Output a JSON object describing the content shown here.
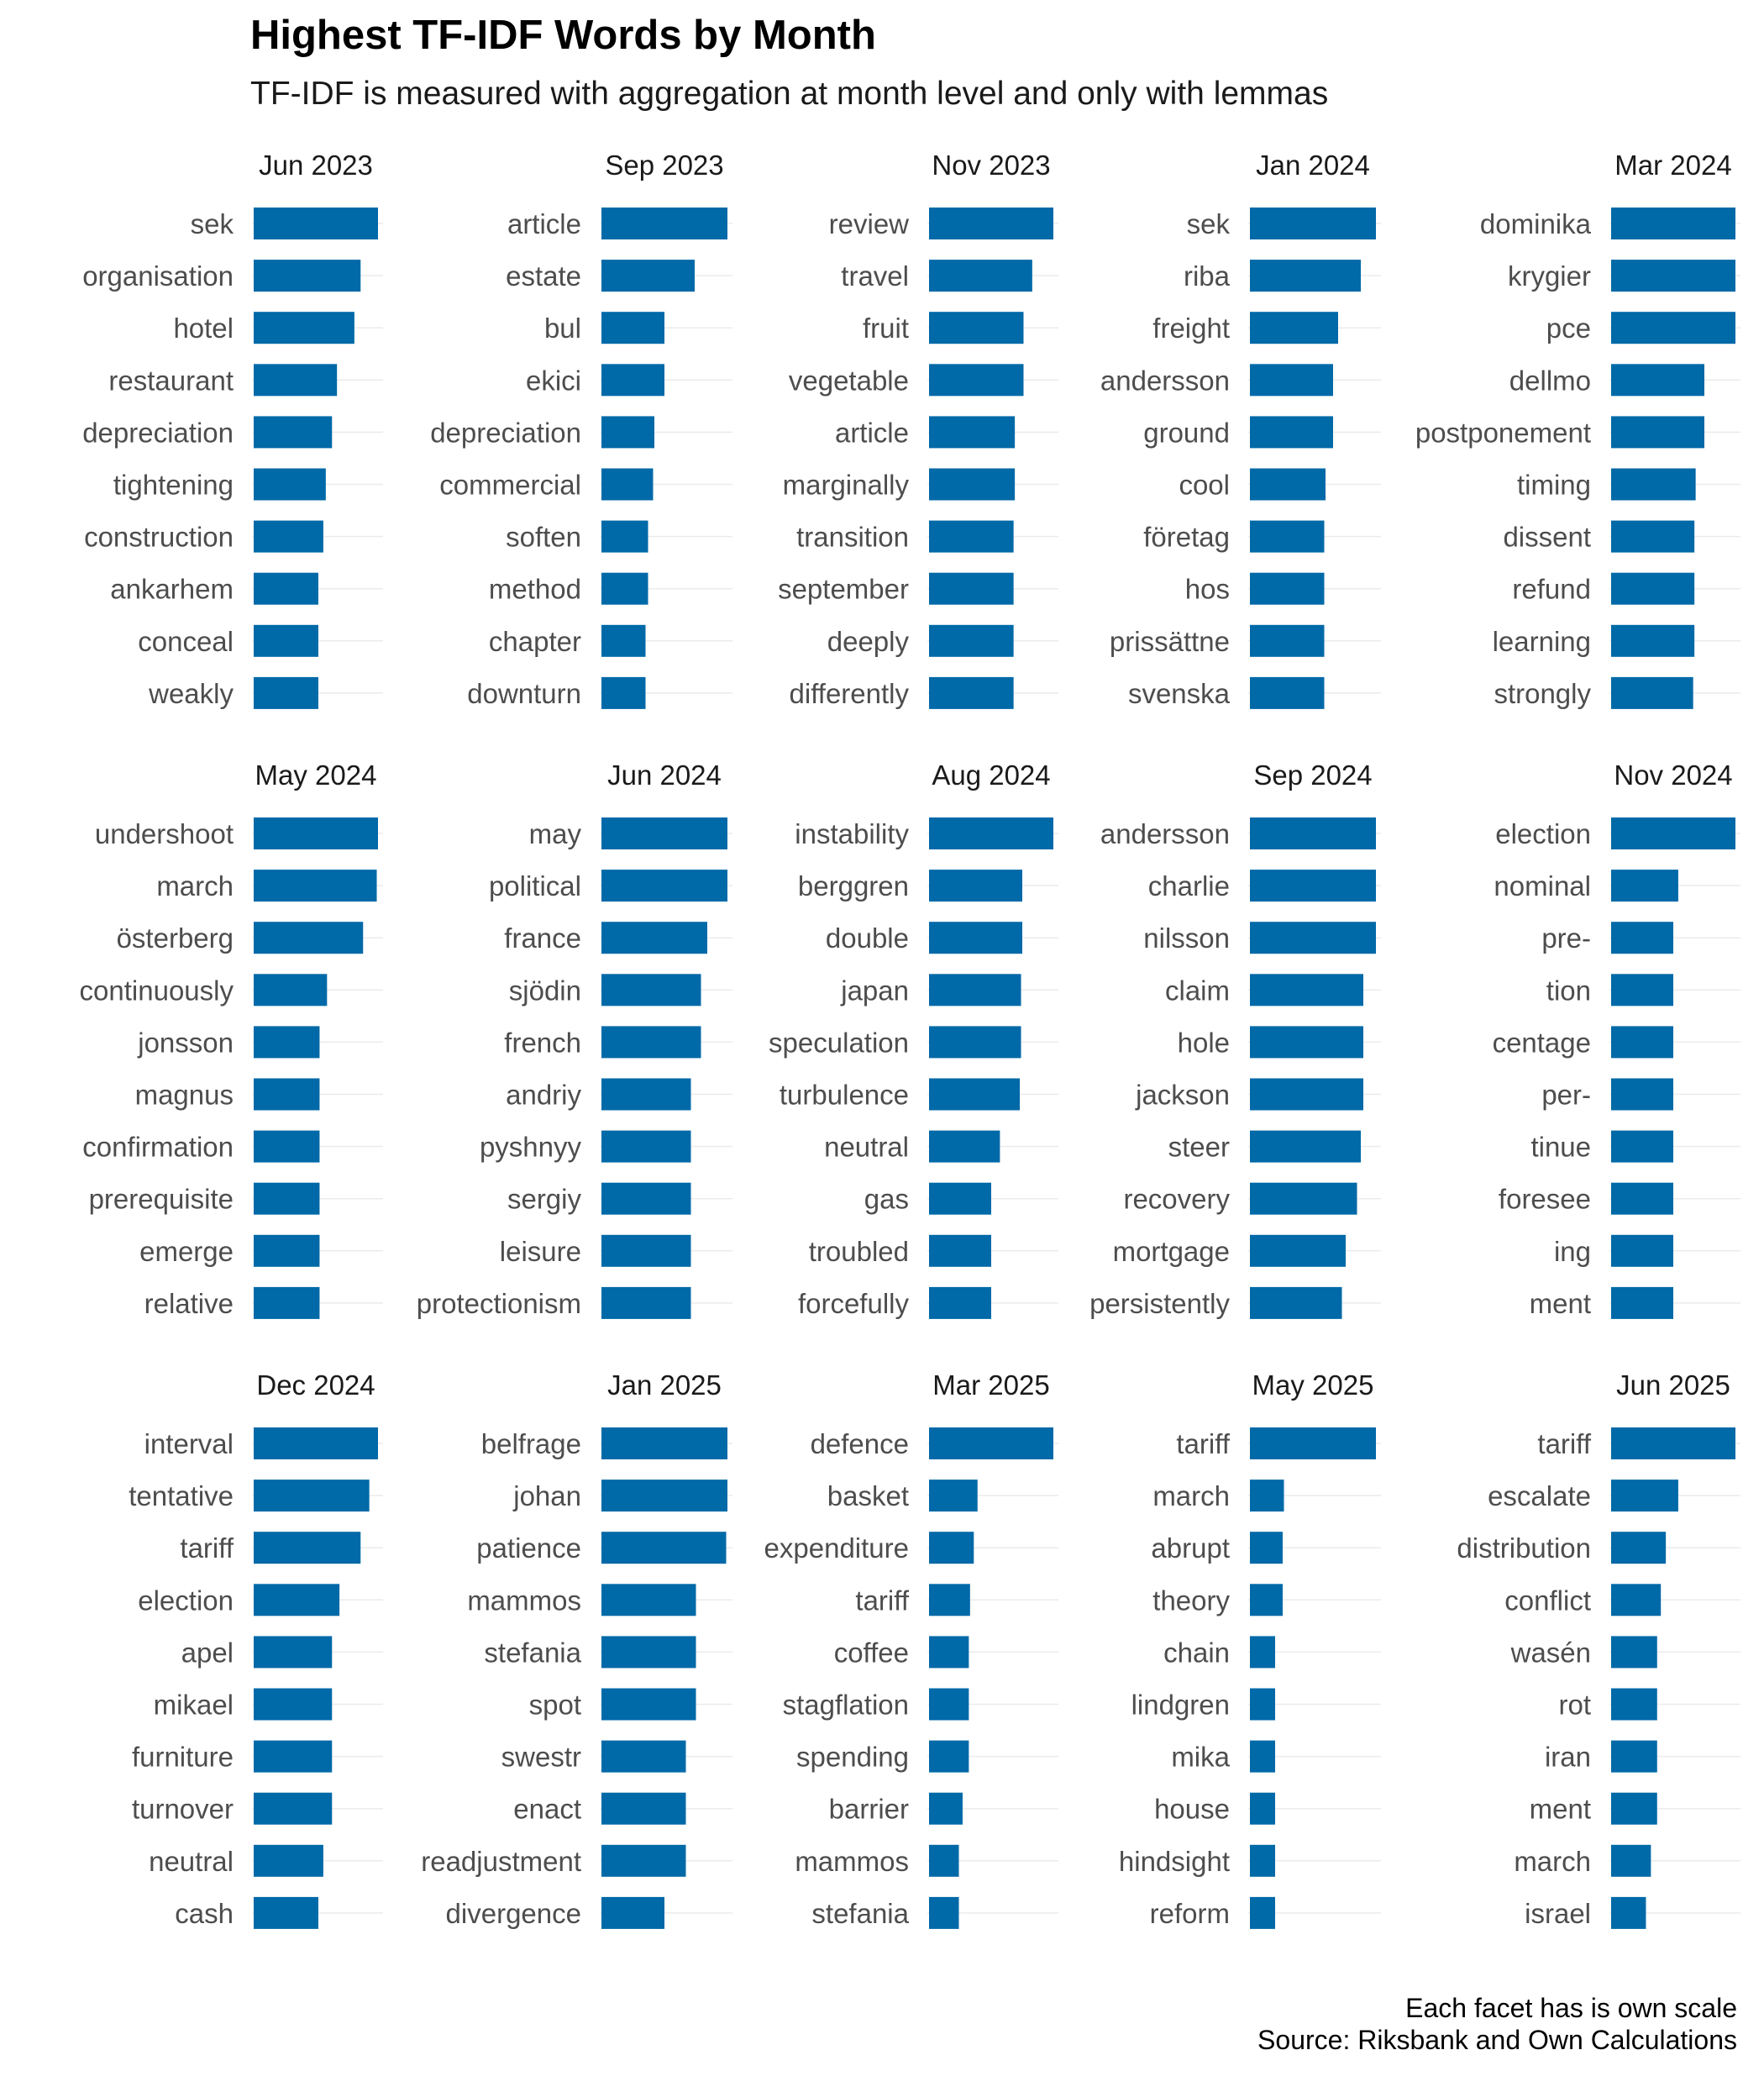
{
  "title": "Highest TF-IDF Words by Month",
  "subtitle": "TF-IDF is measured with aggregation at month level and only with lemmas",
  "caption": [
    "Each facet has is own scale",
    "Source: Riksbank and Own Calculations"
  ],
  "colors": {
    "bar": "#0069a8",
    "grid": "#ebebeb",
    "label": "#4d4d4d",
    "strip": "#1a1a1a"
  },
  "chart_data": {
    "type": "bar",
    "orientation": "horizontal",
    "faceted": true,
    "scales": "free_x",
    "value_note": "values are relative to each facet's maximum (1 = largest bar)",
    "facets": [
      {
        "month": "Jun 2023",
        "words": [
          "sek",
          "organisation",
          "hotel",
          "restaurant",
          "depreciation",
          "tightening",
          "construction",
          "ankarhem",
          "conceal",
          "weakly"
        ],
        "values": [
          1.0,
          0.86,
          0.81,
          0.67,
          0.63,
          0.58,
          0.56,
          0.52,
          0.52,
          0.52
        ]
      },
      {
        "month": "Sep 2023",
        "words": [
          "article",
          "estate",
          "bul",
          "ekici",
          "depreciation",
          "commercial",
          "soften",
          "method",
          "chapter",
          "downturn"
        ],
        "values": [
          1.0,
          0.74,
          0.5,
          0.5,
          0.42,
          0.41,
          0.37,
          0.37,
          0.35,
          0.35
        ]
      },
      {
        "month": "Nov 2023",
        "words": [
          "review",
          "travel",
          "fruit",
          "vegetable",
          "article",
          "marginally",
          "transition",
          "september",
          "deeply",
          "differently"
        ],
        "values": [
          1.0,
          0.83,
          0.76,
          0.76,
          0.69,
          0.69,
          0.68,
          0.68,
          0.68,
          0.68
        ]
      },
      {
        "month": "Jan 2024",
        "words": [
          "sek",
          "riba",
          "freight",
          "andersson",
          "ground",
          "cool",
          "företag",
          "hos",
          "prissättne",
          "svenska"
        ],
        "values": [
          1.0,
          0.88,
          0.7,
          0.66,
          0.66,
          0.6,
          0.59,
          0.59,
          0.59,
          0.59
        ]
      },
      {
        "month": "Mar 2024",
        "words": [
          "dominika",
          "krygier",
          "pce",
          "dellmo",
          "postponement",
          "timing",
          "dissent",
          "refund",
          "learning",
          "strongly"
        ],
        "values": [
          1.0,
          1.0,
          1.0,
          0.75,
          0.75,
          0.68,
          0.67,
          0.67,
          0.67,
          0.66
        ]
      },
      {
        "month": "May 2024",
        "words": [
          "undershoot",
          "march",
          "österberg",
          "continuously",
          "jonsson",
          "magnus",
          "confirmation",
          "prerequisite",
          "emerge",
          "relative"
        ],
        "values": [
          1.0,
          0.99,
          0.88,
          0.59,
          0.53,
          0.53,
          0.53,
          0.53,
          0.53,
          0.53
        ]
      },
      {
        "month": "Jun 2024",
        "words": [
          "may",
          "political",
          "france",
          "sjödin",
          "french",
          "andriy",
          "pyshnyy",
          "sergiy",
          "leisure",
          "protectionism"
        ],
        "values": [
          1.0,
          1.0,
          0.84,
          0.79,
          0.79,
          0.71,
          0.71,
          0.71,
          0.71,
          0.71
        ]
      },
      {
        "month": "Aug 2024",
        "words": [
          "instability",
          "berggren",
          "double",
          "japan",
          "speculation",
          "turbulence",
          "neutral",
          "gas",
          "troubled",
          "forcefully"
        ],
        "values": [
          1.0,
          0.75,
          0.75,
          0.74,
          0.74,
          0.73,
          0.57,
          0.5,
          0.5,
          0.5
        ]
      },
      {
        "month": "Sep 2024",
        "words": [
          "andersson",
          "charlie",
          "nilsson",
          "claim",
          "hole",
          "jackson",
          "steer",
          "recovery",
          "mortgage",
          "persistently"
        ],
        "values": [
          1.0,
          1.0,
          1.0,
          0.9,
          0.9,
          0.9,
          0.88,
          0.85,
          0.76,
          0.73
        ]
      },
      {
        "month": "Nov 2024",
        "words": [
          "election",
          "nominal",
          "pre-",
          "tion",
          "centage",
          "per-",
          "tinue",
          "foresee",
          "ing",
          "ment"
        ],
        "values": [
          1.0,
          0.54,
          0.5,
          0.5,
          0.5,
          0.5,
          0.5,
          0.5,
          0.5,
          0.5
        ]
      },
      {
        "month": "Dec 2024",
        "words": [
          "interval",
          "tentative",
          "tariff",
          "election",
          "apel",
          "mikael",
          "furniture",
          "turnover",
          "neutral",
          "cash"
        ],
        "values": [
          1.0,
          0.93,
          0.86,
          0.69,
          0.63,
          0.63,
          0.63,
          0.63,
          0.56,
          0.52
        ]
      },
      {
        "month": "Jan 2025",
        "words": [
          "belfrage",
          "johan",
          "patience",
          "mammos",
          "stefania",
          "spot",
          "swestr",
          "enact",
          "readjustment",
          "divergence"
        ],
        "values": [
          1.0,
          1.0,
          0.99,
          0.75,
          0.75,
          0.75,
          0.67,
          0.67,
          0.67,
          0.5
        ]
      },
      {
        "month": "Mar 2025",
        "words": [
          "defence",
          "basket",
          "expenditure",
          "tariff",
          "coffee",
          "stagflation",
          "spending",
          "barrier",
          "mammos",
          "stefania"
        ],
        "values": [
          1.0,
          0.39,
          0.36,
          0.33,
          0.32,
          0.32,
          0.32,
          0.27,
          0.24,
          0.24
        ]
      },
      {
        "month": "May 2025",
        "words": [
          "tariff",
          "march",
          "abrupt",
          "theory",
          "chain",
          "lindgren",
          "mika",
          "house",
          "hindsight",
          "reform"
        ],
        "values": [
          1.0,
          0.27,
          0.26,
          0.26,
          0.2,
          0.2,
          0.2,
          0.2,
          0.2,
          0.2
        ]
      },
      {
        "month": "Jun 2025",
        "words": [
          "tariff",
          "escalate",
          "distribution",
          "conflict",
          "wasén",
          "rot",
          "iran",
          "ment",
          "march",
          "israel"
        ],
        "values": [
          1.0,
          0.54,
          0.44,
          0.4,
          0.37,
          0.37,
          0.37,
          0.37,
          0.32,
          0.28
        ]
      }
    ]
  }
}
